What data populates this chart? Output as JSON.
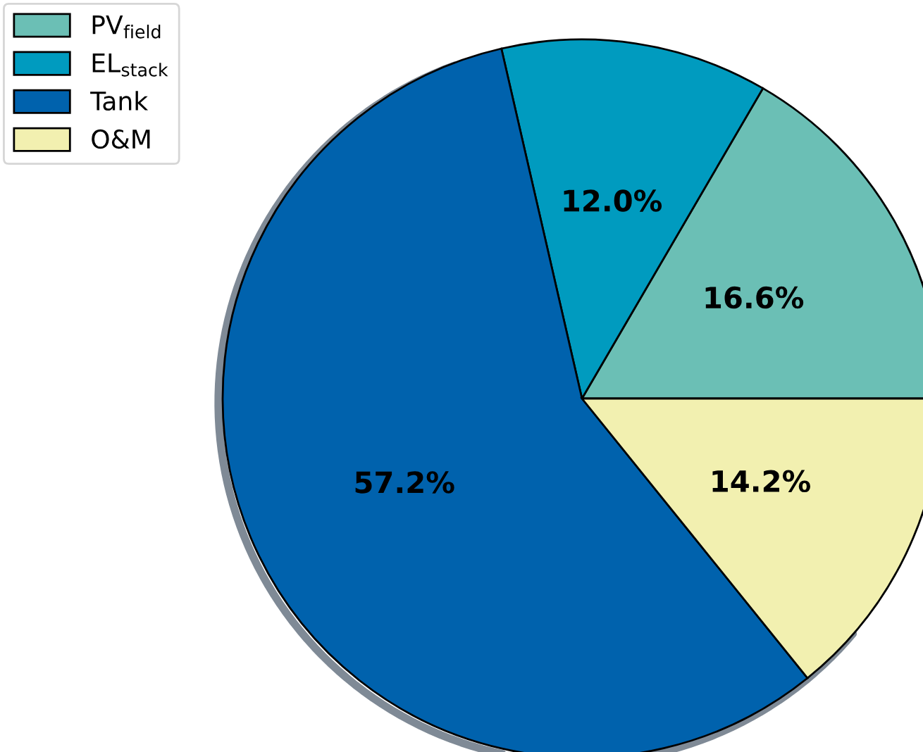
{
  "chart_data": {
    "type": "pie",
    "categories": [
      "PV$_{field}$",
      "EL$_{stack}$",
      "Tank",
      "O&M"
    ],
    "values": [
      16.6,
      12.0,
      57.2,
      14.2
    ],
    "colors": [
      "#6bbfb5",
      "#009bbf",
      "#0062ad",
      "#f2f0b0"
    ],
    "value_labels": [
      "16.6%",
      "12.0%",
      "57.2%",
      "14.2%"
    ],
    "legend": "top left"
  }
}
